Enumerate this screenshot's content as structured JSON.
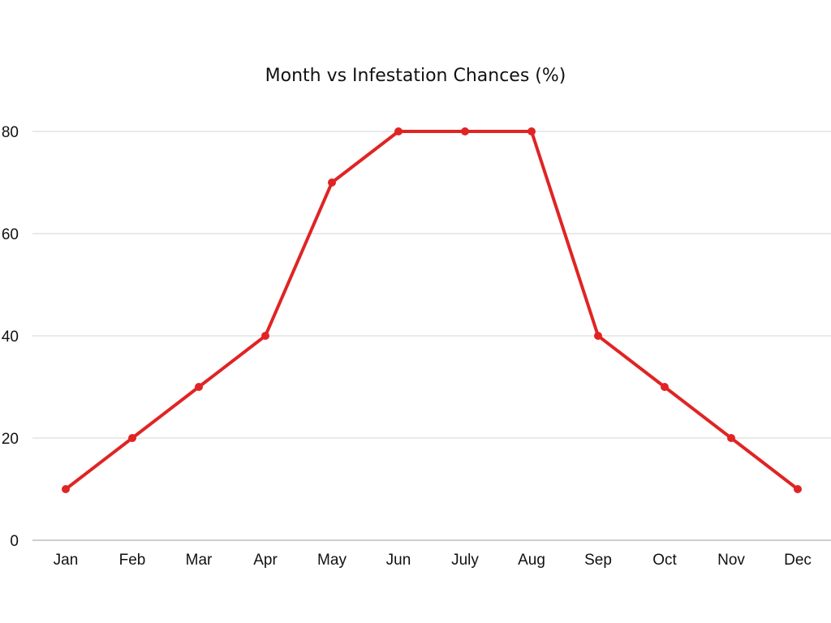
{
  "chart_data": {
    "type": "line",
    "title": "Month vs Infestation Chances (%)",
    "xlabel": "",
    "ylabel": "",
    "categories": [
      "Jan",
      "Feb",
      "Mar",
      "Apr",
      "May",
      "Jun",
      "July",
      "Aug",
      "Sep",
      "Oct",
      "Nov",
      "Dec"
    ],
    "series": [
      {
        "values": [
          10,
          20,
          30,
          40,
          70,
          80,
          80,
          80,
          40,
          30,
          20,
          10
        ],
        "color": "#e02424"
      }
    ],
    "ylim": [
      0,
      80
    ],
    "yticks": [
      0,
      20,
      40,
      60,
      80
    ],
    "grid": true,
    "legend": "none"
  }
}
